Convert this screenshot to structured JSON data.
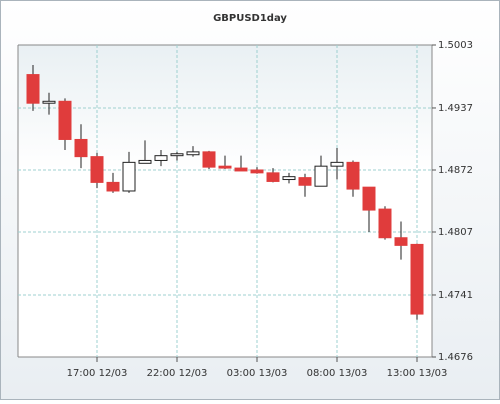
{
  "chart_data": {
    "type": "candlestick",
    "title": "GBPUSD1day",
    "categories": [
      null,
      null,
      null,
      null,
      "17:00 12/03",
      null,
      null,
      null,
      null,
      "22:00 12/03",
      null,
      null,
      null,
      null,
      "03:00 13/03",
      null,
      null,
      null,
      null,
      "08:00 13/03",
      null,
      null,
      null,
      null,
      "13:00 13/03"
    ],
    "open": [
      1.4972,
      1.4942,
      1.4944,
      1.4904,
      1.4886,
      1.4859,
      1.485,
      1.4879,
      1.4882,
      1.4887,
      1.4888,
      1.4891,
      1.4876,
      1.4874,
      1.4872,
      1.4869,
      1.4862,
      1.4864,
      1.4855,
      1.4876,
      1.488,
      1.4854,
      1.4831,
      1.4801,
      1.4794
    ],
    "high": [
      1.4982,
      1.4953,
      1.4947,
      1.492,
      1.489,
      1.4869,
      1.4891,
      1.4903,
      1.4893,
      1.4891,
      1.4897,
      1.4892,
      1.4887,
      1.4887,
      1.4875,
      1.4874,
      1.4869,
      1.4868,
      1.4887,
      1.4895,
      1.4882,
      1.4854,
      1.4834,
      1.4818,
      1.4795
    ],
    "low": [
      1.4934,
      1.493,
      1.4893,
      1.4874,
      1.4853,
      1.4848,
      1.4848,
      1.4879,
      1.4876,
      1.4882,
      1.4886,
      1.4873,
      1.4873,
      1.4871,
      1.4868,
      1.4859,
      1.4858,
      1.4844,
      1.4855,
      1.4862,
      1.4844,
      1.4807,
      1.4799,
      1.4778,
      1.4715
    ],
    "close": [
      1.4942,
      1.4944,
      1.4904,
      1.4886,
      1.4859,
      1.485,
      1.488,
      1.4882,
      1.4887,
      1.4889,
      1.4891,
      1.4875,
      1.4874,
      1.4871,
      1.4869,
      1.486,
      1.4865,
      1.4856,
      1.4876,
      1.488,
      1.4852,
      1.483,
      1.4801,
      1.4793,
      1.4721
    ],
    "up_color": "#ffffff",
    "down_color": "#e03c3c",
    "ylim": [
      1.4676,
      1.5003
    ],
    "yticks": [
      1.4676,
      1.4741,
      1.4807,
      1.4872,
      1.4937,
      1.5003
    ],
    "grid": true
  }
}
